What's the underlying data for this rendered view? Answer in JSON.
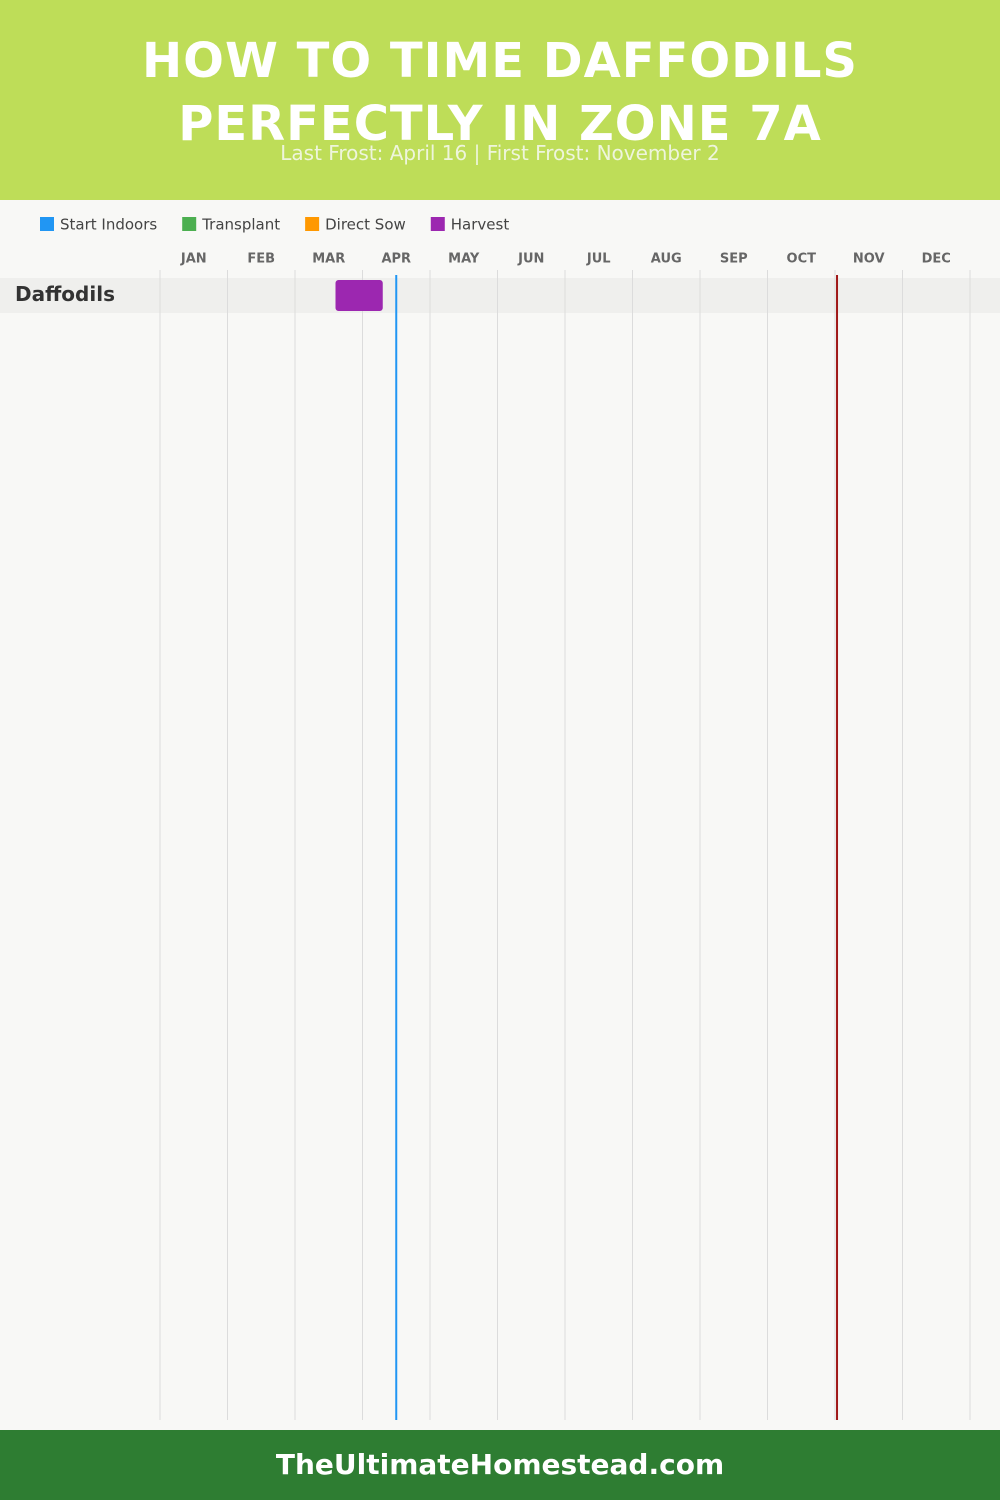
{
  "chart_data": {
    "type": "gantt",
    "title": "HOW TO TIME DAFFODILS PERFECTLY IN ZONE 7A",
    "subtitle": "Last Frost: April 16 | First Frost: November 2",
    "categories": [
      "Daffodils"
    ],
    "series": [
      {
        "name": "Start Indoors",
        "color": "#2196f3",
        "values": [
          null
        ]
      },
      {
        "name": "Transplant",
        "color": "#4caf50",
        "values": [
          null
        ]
      },
      {
        "name": "Direct Sow",
        "color": "#ff9800",
        "values": [
          null
        ]
      },
      {
        "name": "Harvest",
        "color": "#9c27b0",
        "values": [
          [
            2.6,
            3.3
          ]
        ]
      }
    ],
    "xlim": [
      0,
      12
    ],
    "xticks": [
      {
        "value": 0.5,
        "label": "JAN"
      },
      {
        "value": 1.5,
        "label": "FEB"
      },
      {
        "value": 2.5,
        "label": "MAR"
      },
      {
        "value": 3.5,
        "label": "APR"
      },
      {
        "value": 4.5,
        "label": "MAY"
      },
      {
        "value": 5.5,
        "label": "JUN"
      },
      {
        "value": 6.5,
        "label": "JUL"
      },
      {
        "value": 7.5,
        "label": "AUG"
      },
      {
        "value": 8.5,
        "label": "SEP"
      },
      {
        "value": 9.5,
        "label": "OCT"
      },
      {
        "value": 10.5,
        "label": "NOV"
      },
      {
        "value": 11.5,
        "label": "DEC"
      }
    ],
    "last_frost": {
      "value": 3.5,
      "color": "#2196f3"
    },
    "first_frost": {
      "value": 10.03,
      "color": "#a01818"
    },
    "grid": true
  },
  "footer": "TheUltimateHomestead.com"
}
